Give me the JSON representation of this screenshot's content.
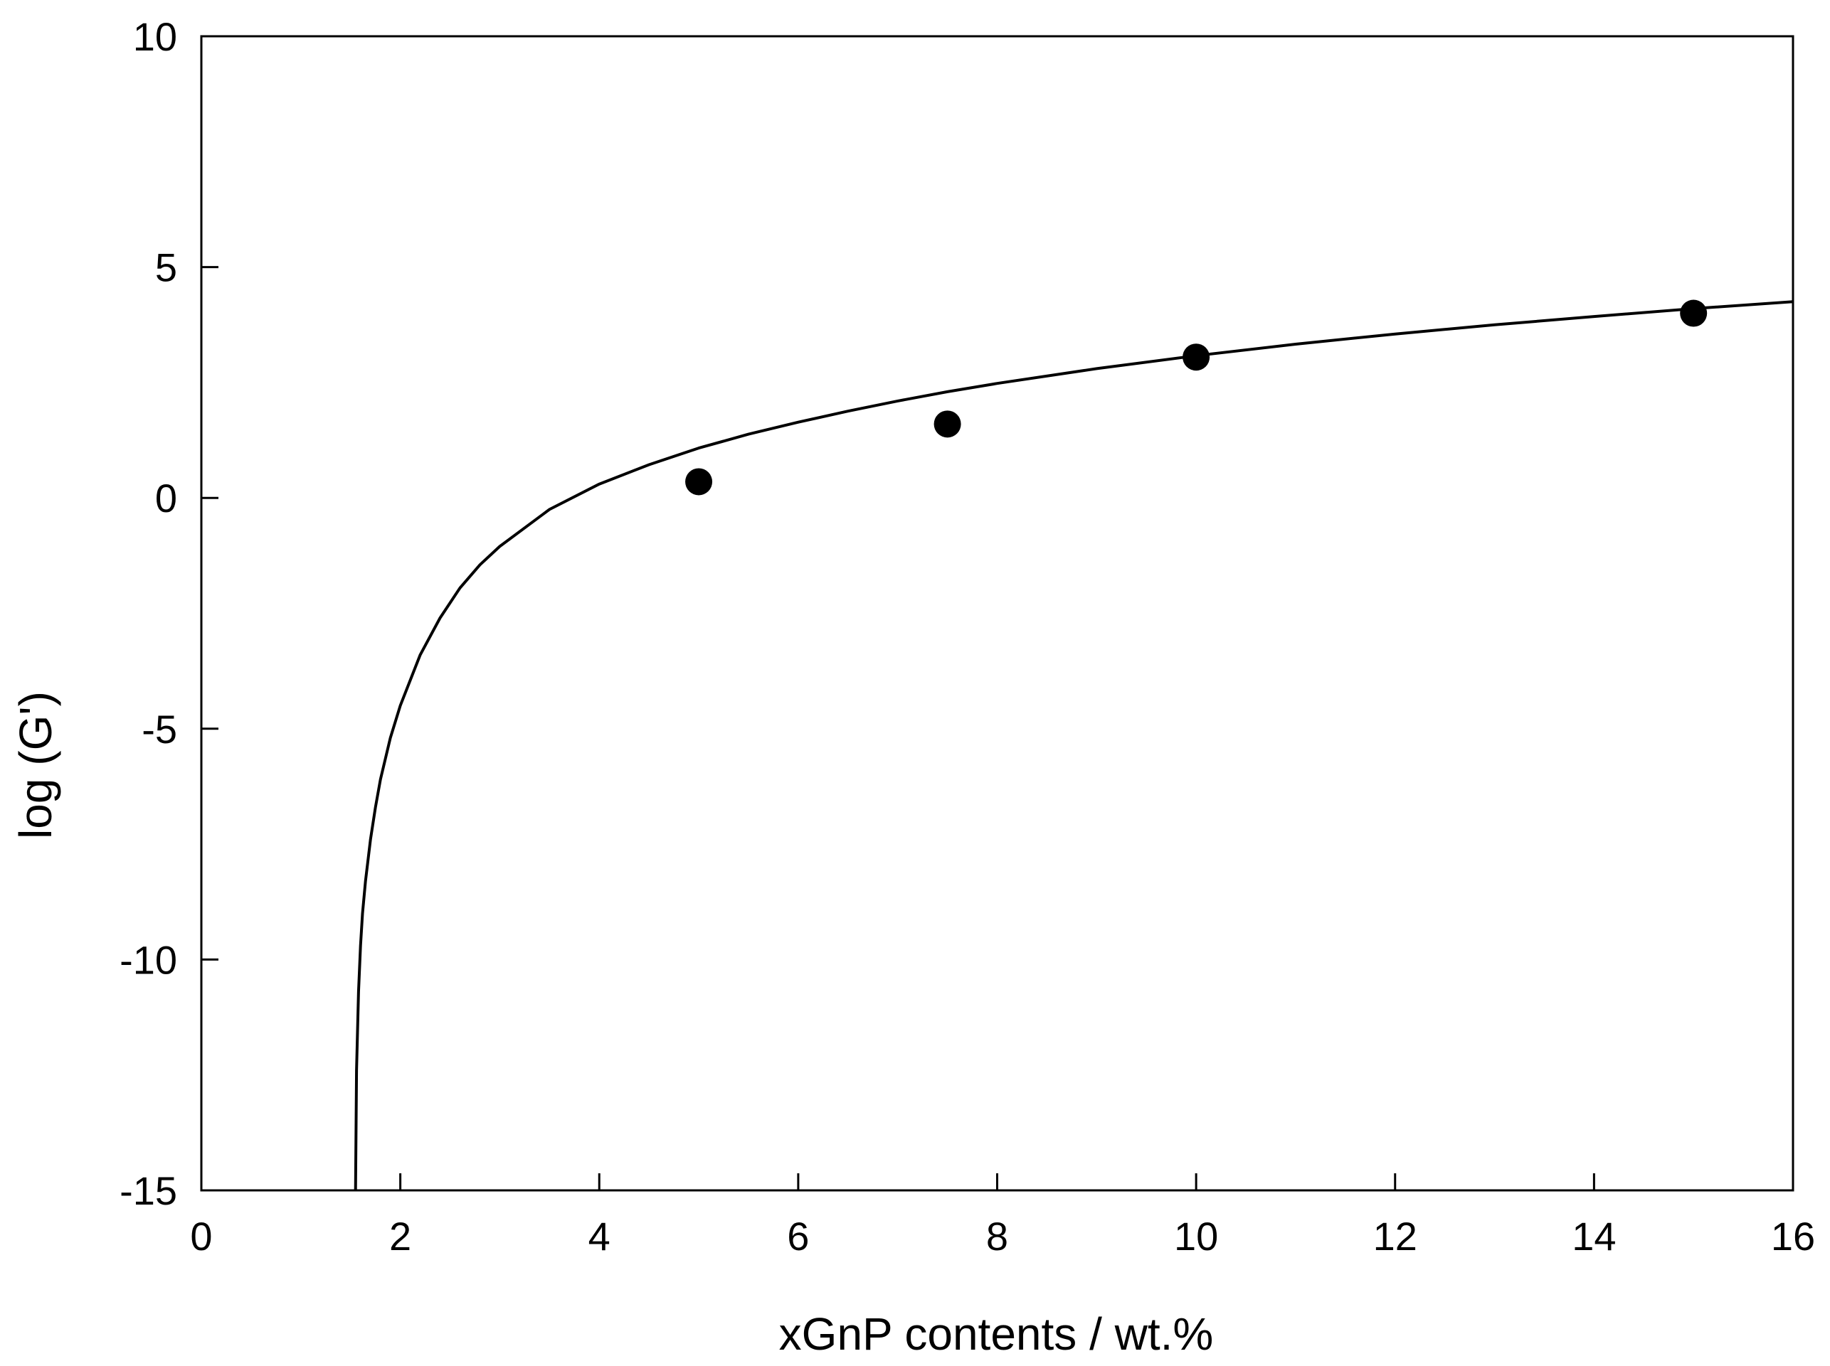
{
  "chart_data": {
    "type": "scatter",
    "title": "",
    "xlabel": "xGnP contents / wt.%",
    "ylabel": "log (G')",
    "xlim": [
      0,
      16
    ],
    "ylim": [
      -15,
      10
    ],
    "xticks": [
      0,
      2,
      4,
      6,
      8,
      10,
      12,
      14,
      16
    ],
    "yticks": [
      -15,
      -10,
      -5,
      0,
      5,
      10
    ],
    "xtick_labels": [
      "0",
      "2",
      "4",
      "6",
      "8",
      "10",
      "12",
      "14",
      "16"
    ],
    "ytick_labels": [
      "-15",
      "-10",
      "-5",
      "0",
      "5",
      "10"
    ],
    "grid": false,
    "legend": "none",
    "series": [
      {
        "kind": "points",
        "color": "#000000",
        "x": [
          5.0,
          7.5,
          10.0,
          15.0
        ],
        "y": [
          0.35,
          1.6,
          3.05,
          4.0
        ]
      },
      {
        "kind": "fit-line",
        "color": "#000000",
        "x": [
          1.55,
          1.56,
          1.58,
          1.6,
          1.62,
          1.65,
          1.7,
          1.75,
          1.8,
          1.9,
          2.0,
          2.2,
          2.4,
          2.6,
          2.8,
          3.0,
          3.5,
          4.0,
          4.5,
          5.0,
          5.5,
          6.0,
          6.5,
          7.0,
          7.5,
          8.0,
          9.0,
          10.0,
          11.0,
          12.0,
          13.0,
          14.0,
          15.0,
          16.0
        ],
        "y": [
          -15.0,
          -12.4,
          -10.7,
          -9.7,
          -9.0,
          -8.3,
          -7.4,
          -6.7,
          -6.1,
          -5.2,
          -4.5,
          -3.4,
          -2.6,
          -1.95,
          -1.45,
          -1.05,
          -0.25,
          0.3,
          0.72,
          1.08,
          1.38,
          1.64,
          1.88,
          2.1,
          2.3,
          2.48,
          2.8,
          3.08,
          3.33,
          3.55,
          3.75,
          3.93,
          4.1,
          4.25
        ]
      }
    ]
  }
}
